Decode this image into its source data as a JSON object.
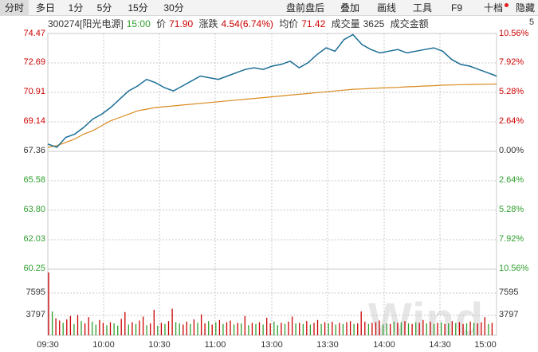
{
  "toolbar": {
    "tabs": [
      {
        "label": "分时",
        "active": true
      },
      {
        "label": "多日",
        "active": false
      },
      {
        "label": "1分",
        "active": false
      },
      {
        "label": "5分",
        "active": false
      },
      {
        "label": "15分",
        "active": false
      },
      {
        "label": "30分",
        "active": false
      }
    ],
    "right_buttons": [
      "盘前盘后",
      "叠加",
      "画线",
      "工具",
      "F9",
      "十档",
      "隐藏"
    ]
  },
  "info": {
    "code_name": "300274[阳光电源]",
    "time": "15:00",
    "price_label": "价",
    "price": "71.90",
    "change_label": "涨跌",
    "change": "4.54(6.74%)",
    "avg_label": "均价",
    "avg": "71.42",
    "volume_label": "成交量",
    "volume": "3625",
    "amount_label": "成交金额"
  },
  "axes": {
    "price_left": [
      "74.47",
      "72.69",
      "70.91",
      "69.14",
      "67.36",
      "65.58",
      "63.80",
      "62.03",
      "60.25"
    ],
    "pct_right": [
      "10.56%",
      "7.92%",
      "5.28%",
      "2.64%",
      "0.00%",
      "2.64%",
      "5.28%",
      "7.92%",
      "10.56%"
    ],
    "vol_left": [
      "7595",
      "3797"
    ],
    "vol_right": [
      "7595",
      "3797"
    ],
    "corner": "5",
    "time_labels": [
      "09:30",
      "10:00",
      "10:30",
      "11:00",
      "13:00",
      "13:30",
      "14:00",
      "14:30",
      "15:00"
    ]
  },
  "watermark": "Wind",
  "colors": {
    "price_line": "#1b6e96",
    "avg_line": "#d98a1e",
    "up": "#cc0000",
    "down": "#2e9e2e",
    "grid": "#c8c8c8"
  },
  "chart_data": {
    "type": "line",
    "prev_close": 67.36,
    "ylim": [
      60.25,
      74.47
    ],
    "series": [
      {
        "values": [
          67.8,
          67.6,
          68.2,
          68.4,
          68.8,
          69.3,
          69.6,
          70.0,
          70.5,
          71.0,
          71.3,
          71.7,
          71.5,
          71.2,
          71.0,
          71.3,
          71.6,
          71.9,
          71.8,
          71.7,
          71.9,
          72.1,
          72.3,
          72.4,
          72.3,
          72.5,
          72.6,
          72.8,
          72.4,
          72.7,
          73.2,
          73.6,
          73.4,
          74.1,
          74.4,
          73.8,
          73.5,
          73.3,
          73.4,
          73.5,
          73.3,
          73.4,
          73.5,
          73.6,
          73.4,
          72.9,
          72.6,
          72.5,
          72.3,
          72.1,
          71.9
        ]
      },
      {
        "values": [
          67.6,
          67.7,
          67.9,
          68.1,
          68.4,
          68.6,
          68.9,
          69.2,
          69.4,
          69.6,
          69.8,
          69.9,
          70.0,
          70.05,
          70.1,
          70.15,
          70.2,
          70.25,
          70.3,
          70.35,
          70.4,
          70.45,
          70.5,
          70.55,
          70.6,
          70.65,
          70.7,
          70.75,
          70.8,
          70.85,
          70.9,
          70.95,
          71.0,
          71.05,
          71.1,
          71.12,
          71.15,
          71.18,
          71.2,
          71.22,
          71.25,
          71.27,
          71.3,
          71.32,
          71.35,
          71.36,
          71.38,
          71.39,
          71.4,
          71.41,
          71.42
        ]
      }
    ],
    "volume": {
      "ylim": [
        0,
        11392
      ],
      "values": [
        11100,
        4200,
        3000,
        2600,
        2200,
        2800,
        3400,
        2000,
        3600,
        2500,
        2100,
        3200,
        2400,
        1900,
        2700,
        2200,
        1800,
        2300,
        2100,
        1700,
        2900,
        4100,
        1900,
        2300,
        2000,
        2600,
        3300,
        1800,
        2100,
        4500,
        1700,
        2200,
        2000,
        2500,
        4700,
        2300,
        2100,
        1900,
        2400,
        2000,
        2800,
        2200,
        3700,
        2100,
        2500,
        1900,
        2300,
        2700,
        2000,
        2300,
        2600,
        1900,
        2200,
        2100,
        3400,
        1800,
        2200,
        2000,
        2300,
        1900,
        3100,
        2100,
        2400,
        1800,
        2200,
        2000,
        2400,
        3300,
        2100,
        2200,
        2000,
        2500,
        1900,
        2200,
        2700,
        2000,
        2300,
        2100,
        2400,
        1900,
        2200,
        2000,
        2300,
        2500,
        2000,
        2100,
        4200,
        2400,
        2000,
        2200,
        2300,
        2600,
        1900,
        2100,
        2000,
        2400,
        2200,
        2300,
        2500,
        2100,
        2000,
        2300,
        2200,
        2700,
        2100,
        2400,
        2000,
        2200,
        2300,
        2000,
        2100,
        2500,
        2200,
        2300,
        2000,
        2100,
        2400,
        2200,
        2100,
        2300,
        3200,
        2000,
        2200
      ],
      "up": [
        1,
        0,
        1,
        1,
        0,
        1,
        1,
        0,
        1,
        0,
        1,
        1,
        0,
        0,
        1,
        1,
        0,
        1,
        0,
        0,
        1,
        1,
        0,
        1,
        0,
        1,
        1,
        0,
        1,
        1,
        0,
        1,
        0,
        1,
        1,
        0,
        0,
        1,
        1,
        0,
        1,
        0,
        1,
        1,
        0,
        1,
        0,
        1,
        0,
        1,
        1,
        0,
        1,
        0,
        1,
        0,
        1,
        0,
        1,
        0,
        1,
        1,
        0,
        0,
        1,
        0,
        1,
        1,
        0,
        1,
        0,
        1,
        0,
        1,
        1,
        0,
        1,
        0,
        1,
        0,
        1,
        0,
        1,
        1,
        0,
        1,
        1,
        1,
        0,
        1,
        1,
        1,
        0,
        0,
        1,
        0,
        1,
        0,
        1,
        0,
        1,
        0,
        1,
        1,
        0,
        1,
        0,
        1,
        0,
        1,
        0,
        1,
        0,
        1,
        1,
        0,
        1,
        0,
        1,
        1,
        1,
        0,
        1
      ]
    }
  }
}
